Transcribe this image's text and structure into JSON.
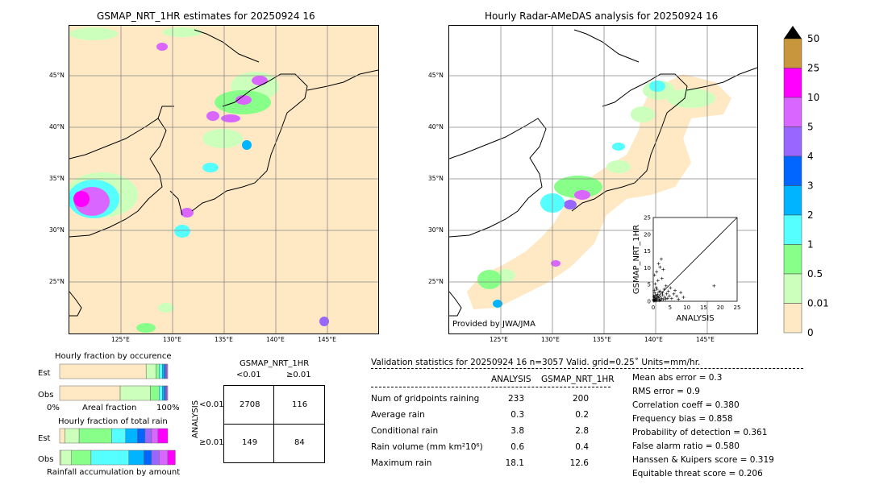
{
  "left_map": {
    "title": "GSMAP_NRT_1HR estimates for 20250924 16",
    "lat_labels": [
      "45°N",
      "40°N",
      "35°N",
      "30°N",
      "25°N"
    ],
    "lon_labels": [
      "125°E",
      "130°E",
      "135°E",
      "140°E",
      "145°E"
    ]
  },
  "right_map": {
    "title": "Hourly Radar-AMeDAS analysis for 20250924 16",
    "lat_labels": [
      "45°N",
      "40°N",
      "35°N",
      "30°N",
      "25°N"
    ],
    "lon_labels": [
      "125°E",
      "130°E",
      "135°E",
      "140°E",
      "145°E"
    ],
    "credit": "Provided by JWA/JMA"
  },
  "colorbar": {
    "labels": [
      "50",
      "25",
      "10",
      "5",
      "4",
      "3",
      "2",
      "1",
      "0.5",
      "0.01",
      "0"
    ],
    "colors": [
      "#c8963c",
      "#ff00ff",
      "#d966ff",
      "#9966ff",
      "#0066ff",
      "#00b4ff",
      "#55ffff",
      "#88ff88",
      "#ccffbb",
      "#ffe9c4"
    ]
  },
  "chart_data": [
    {
      "type": "scatter",
      "title": "",
      "xlabel": "ANALYSIS",
      "ylabel": "GSMAP_NRT_1HR",
      "xlim": [
        0,
        25
      ],
      "ylim": [
        0,
        25
      ],
      "x_ticks": [
        "0",
        "5",
        "10",
        "15",
        "20",
        "25"
      ],
      "y_ticks": [
        "0",
        "5",
        "10",
        "15",
        "20",
        "25"
      ],
      "points": [
        [
          0.1,
          0.2
        ],
        [
          0.2,
          0.1
        ],
        [
          0.3,
          0.4
        ],
        [
          0.4,
          0.2
        ],
        [
          0.5,
          1.0
        ],
        [
          0.6,
          0.3
        ],
        [
          0.8,
          0.5
        ],
        [
          1.0,
          0.9
        ],
        [
          1.2,
          0.3
        ],
        [
          1.3,
          2.1
        ],
        [
          0.2,
          1.5
        ],
        [
          0.5,
          2.5
        ],
        [
          0.7,
          1.8
        ],
        [
          1.5,
          1.1
        ],
        [
          1.8,
          0.6
        ],
        [
          2.0,
          1.4
        ],
        [
          2.2,
          0.4
        ],
        [
          2.5,
          0.8
        ],
        [
          2.8,
          1.9
        ],
        [
          3.0,
          0.5
        ],
        [
          0.3,
          3.3
        ],
        [
          0.9,
          4.1
        ],
        [
          1.1,
          3.6
        ],
        [
          0.6,
          5.2
        ],
        [
          1.4,
          6.2
        ],
        [
          2.1,
          3.0
        ],
        [
          3.4,
          1.2
        ],
        [
          3.7,
          0.7
        ],
        [
          4.0,
          2.2
        ],
        [
          4.3,
          0.9
        ],
        [
          0.4,
          7.8
        ],
        [
          1.0,
          8.8
        ],
        [
          1.6,
          11.2
        ],
        [
          2.0,
          10.2
        ],
        [
          2.4,
          12.6
        ],
        [
          3.0,
          9.5
        ],
        [
          4.8,
          1.6
        ],
        [
          5.5,
          0.8
        ],
        [
          6.1,
          2.2
        ],
        [
          7.0,
          1.5
        ],
        [
          7.5,
          0.6
        ],
        [
          8.2,
          2.6
        ],
        [
          9.0,
          1.2
        ],
        [
          5.1,
          4.0
        ],
        [
          6.5,
          3.2
        ],
        [
          2.6,
          6.8
        ],
        [
          3.8,
          4.6
        ],
        [
          1.7,
          2.8
        ],
        [
          0.8,
          0.1
        ],
        [
          1.9,
          0.2
        ],
        [
          18.1,
          4.6
        ],
        [
          0.1,
          0.6
        ],
        [
          0.3,
          1.2
        ],
        [
          1.1,
          1.6
        ],
        [
          2.7,
          2.5
        ],
        [
          3.3,
          3.6
        ],
        [
          4.5,
          3.0
        ]
      ]
    },
    {
      "type": "bar",
      "title": "Hourly fraction by occurence",
      "categories": [
        "Est",
        "Obs"
      ],
      "x_ticks": [
        "0%",
        "Areal fraction",
        "100%"
      ],
      "series": [
        {
          "category": "Est",
          "fractions": [
            0.8,
            0.09,
            0.03,
            0.03,
            0.02,
            0.01,
            0.01,
            0.01
          ]
        },
        {
          "category": "Obs",
          "fractions": [
            0.56,
            0.28,
            0.08,
            0.03,
            0.02,
            0.01,
            0.01,
            0.01
          ]
        }
      ],
      "colors": [
        "#ffe9c4",
        "#ccffbb",
        "#88ff88",
        "#55ffff",
        "#00b4ff",
        "#0066ff",
        "#9966ff",
        "#d966ff"
      ]
    },
    {
      "type": "bar",
      "title": "Hourly fraction of total rain",
      "xlabel": "Rainfall accumulation by amount",
      "categories": [
        "Est",
        "Obs"
      ],
      "series": [
        {
          "category": "Est",
          "fractions": [
            0.05,
            0.13,
            0.3,
            0.13,
            0.11,
            0.07,
            0.06,
            0.06,
            0.09
          ]
        },
        {
          "category": "Obs",
          "fractions": [
            0.01,
            0.1,
            0.18,
            0.35,
            0.14,
            0.07,
            0.07,
            0.08,
            0.07
          ]
        }
      ],
      "colors": [
        "#ffe9c4",
        "#ccffbb",
        "#88ff88",
        "#55ffff",
        "#00b4ff",
        "#0066ff",
        "#9966ff",
        "#d966ff",
        "#ff00ff"
      ]
    }
  ],
  "contingency": {
    "col_title": "GSMAP_NRT_1HR",
    "col_labels": [
      "<0.01",
      "≥0.01"
    ],
    "row_title": "ANALYSIS",
    "row_labels": [
      "<0.01",
      "≥0.01"
    ],
    "cells": [
      [
        "2708",
        "116"
      ],
      [
        "149",
        "84"
      ]
    ]
  },
  "validation": {
    "header": "Validation statistics for 20250924 16  n=3057 Valid. grid=0.25˚ Units=mm/hr.",
    "col1": "ANALYSIS",
    "col2": "GSMAP_NRT_1HR",
    "rows": [
      {
        "label": "Num of gridpoints raining",
        "a": "233",
        "g": "200"
      },
      {
        "label": "Average rain",
        "a": "0.3",
        "g": "0.2"
      },
      {
        "label": "Conditional rain",
        "a": "3.8",
        "g": "2.8"
      },
      {
        "label": "Rain volume (mm km²10⁶)",
        "a": "0.6",
        "g": "0.4"
      },
      {
        "label": "Maximum rain",
        "a": "18.1",
        "g": "12.6"
      }
    ],
    "scores": [
      "Mean abs error =    0.3",
      "RMS error =    0.9",
      "Correlation coeff =  0.380",
      "Frequency bias =  0.858",
      "Probability of detection =  0.361",
      "False alarm ratio =  0.580",
      "Hanssen & Kuipers score =  0.319",
      "Equitable threat score =  0.206"
    ]
  }
}
